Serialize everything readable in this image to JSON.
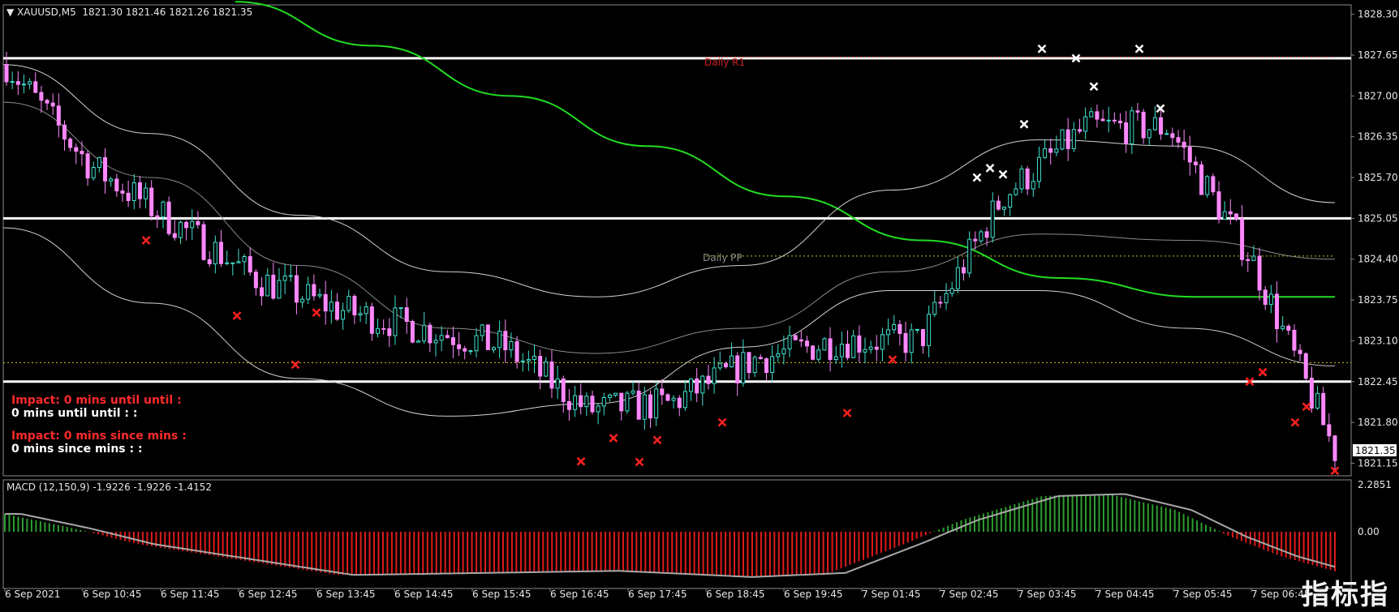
{
  "header": {
    "symbol": "XAUUSD,M5",
    "quote": "1821.30 1821.46 1821.26 1821.35"
  },
  "price_axis": {
    "labels": [
      "1828.30",
      "1827.65",
      "1827.00",
      "1826.35",
      "1825.70",
      "1825.05",
      "1824.40",
      "1823.75",
      "1823.10",
      "1822.45",
      "1821.80",
      "1821.15"
    ],
    "current": "1821.35"
  },
  "macd_axis": {
    "labels": [
      "2.2851",
      "0.00"
    ]
  },
  "time_axis": {
    "labels": [
      "6 Sep 2021",
      "6 Sep 10:45",
      "6 Sep 11:45",
      "6 Sep 12:45",
      "6 Sep 13:45",
      "6 Sep 14:45",
      "6 Sep 15:45",
      "6 Sep 16:45",
      "6 Sep 17:45",
      "6 Sep 18:45",
      "6 Sep 19:45",
      "7 Sep 01:45",
      "7 Sep 02:45",
      "7 Sep 03:45",
      "7 Sep 04:45",
      "7 Sep 05:45",
      "7 Sep 06:45"
    ]
  },
  "levels": {
    "r1_label": "Daily R1",
    "pp_label": "Daily PP"
  },
  "impact": {
    "line1": "Impact: 0 mins until until :",
    "line2": "0 mins until until : :",
    "line3": "Impact: 0 mins since  mins :",
    "line4": "0 mins since  mins : :"
  },
  "macd": {
    "label": "MACD (12,150,9) -1.9226 -1.9226 -1.4152"
  },
  "watermark": "指标指",
  "colors": {
    "bull_candle": "#40e0d0",
    "bear_candle": "#ff88ff",
    "ma_green": "#22dd22",
    "envelope": "#d0d0d0",
    "level_white": "#ffffff",
    "r1_red": "#cc2222",
    "pp_yellow": "#d4c21a",
    "hist_up": "#2e9e2e",
    "hist_down": "#e01a1a",
    "signal": "#a8a8a8"
  },
  "chart_data": [
    {
      "type": "candlestick",
      "symbol": "XAUUSD",
      "timeframe": "M5",
      "ylim": [
        1820.95,
        1828.45
      ],
      "close_path": [
        {
          "t": "6 Sep 2021",
          "c": 1827.5
        },
        {
          "t": "6 Sep 10:45",
          "c": 1825.9
        },
        {
          "t": "6 Sep 11:45",
          "c": 1825.0
        },
        {
          "t": "6 Sep 12:45",
          "c": 1824.1
        },
        {
          "t": "6 Sep 13:45",
          "c": 1823.6
        },
        {
          "t": "6 Sep 14:45",
          "c": 1823.3
        },
        {
          "t": "6 Sep 15:45",
          "c": 1823.0
        },
        {
          "t": "6 Sep 16:45",
          "c": 1822.0
        },
        {
          "t": "6 Sep 17:45",
          "c": 1822.1
        },
        {
          "t": "6 Sep 18:45",
          "c": 1822.8
        },
        {
          "t": "6 Sep 19:45",
          "c": 1823.1
        },
        {
          "t": "7 Sep 01:45",
          "c": 1823.1
        },
        {
          "t": "7 Sep 02:45",
          "c": 1825.4
        },
        {
          "t": "7 Sep 03:45",
          "c": 1826.5
        },
        {
          "t": "7 Sep 04:45",
          "c": 1826.5
        },
        {
          "t": "7 Sep 05:45",
          "c": 1824.4
        },
        {
          "t": "7 Sep 06:45",
          "c": 1821.35
        }
      ],
      "ma_green": [
        1828.5,
        1827.8,
        1827.0,
        1826.2,
        1825.4,
        1824.7,
        1824.1,
        1823.8,
        1823.8
      ],
      "upper_band": [
        1827.5,
        1826.4,
        1825.1,
        1824.2,
        1823.8,
        1824.3,
        1825.5,
        1826.3,
        1826.2,
        1825.3
      ],
      "middle_band": [
        1826.9,
        1825.7,
        1824.3,
        1823.3,
        1822.9,
        1823.3,
        1824.2,
        1824.8,
        1824.7,
        1824.4
      ],
      "lower_band": [
        1824.9,
        1823.7,
        1822.5,
        1821.9,
        1822.1,
        1823.0,
        1823.9,
        1823.9,
        1823.3,
        1822.7
      ],
      "levels": [
        {
          "price": 1827.6,
          "kind": "white"
        },
        {
          "price": 1825.05,
          "kind": "white"
        },
        {
          "price": 1822.45,
          "kind": "white"
        },
        {
          "price": 1827.62,
          "kind": "r1"
        },
        {
          "price": 1824.45,
          "kind": "pp"
        },
        {
          "price": 1822.75,
          "kind": "yellow"
        }
      ]
    },
    {
      "type": "bar",
      "name": "MACD (12,150,9)",
      "values": [
        -1.9226,
        -1.9226,
        -1.4152
      ],
      "ylim": [
        -2.6,
        2.2851
      ]
    }
  ]
}
